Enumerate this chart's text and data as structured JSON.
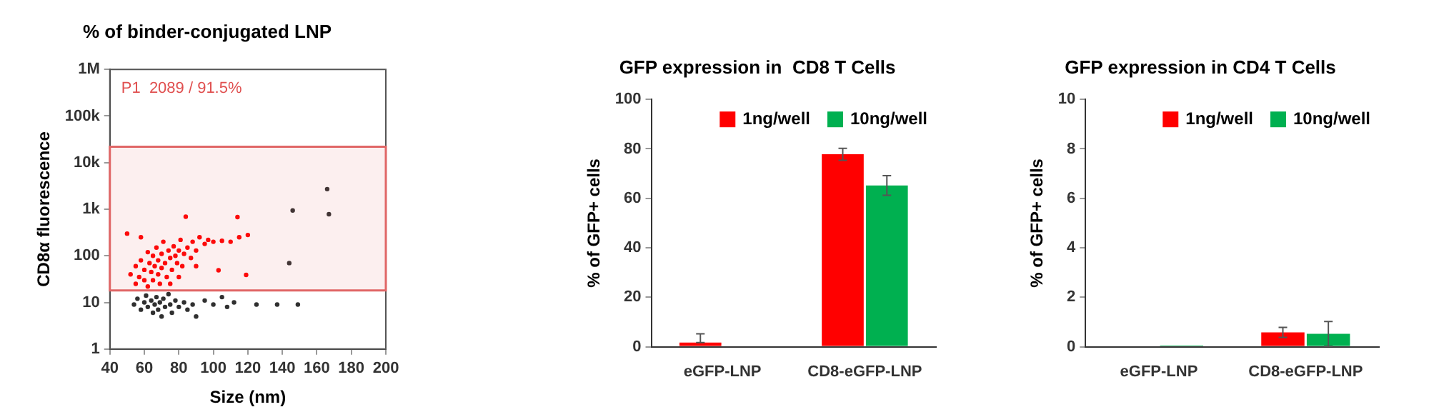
{
  "chart_data": [
    {
      "type": "scatter",
      "title": "% of binder-conjugated LNP",
      "xlabel": "Size (nm)",
      "ylabel": "CD8α fluorescence",
      "log": "y",
      "grid": false,
      "legend": false,
      "marker": "circle",
      "xlim": [
        40,
        200
      ],
      "xticks": [
        40,
        60,
        80,
        100,
        120,
        140,
        160,
        180,
        200
      ],
      "ylim": [
        1,
        1000000
      ],
      "yticks": [
        1,
        10,
        100,
        {
          "value": 1000,
          "label": "1k"
        },
        {
          "value": 10000,
          "label": "10k"
        },
        {
          "value": 100000,
          "label": "100k"
        },
        {
          "value": 1000000,
          "label": "1M"
        }
      ],
      "bands": [
        {
          "axis": "y",
          "from": 18,
          "to": 22000,
          "color": "#e06666"
        }
      ],
      "annotations": [
        "P1  2089 / 91.5%"
      ],
      "series": [
        {
          "color": "#ff0000",
          "x": [
            52,
            55,
            55,
            57,
            58,
            60,
            60,
            62,
            62,
            63,
            64,
            65,
            65,
            66,
            67,
            68,
            68,
            69,
            70,
            70,
            71,
            72,
            73,
            74,
            75,
            76,
            77,
            78,
            79,
            80,
            81,
            82,
            83,
            85,
            87,
            88,
            90,
            92,
            95,
            97,
            100,
            105,
            110,
            115,
            120,
            50,
            58,
            84,
            114,
            80,
            103,
            119,
            90,
            75
          ],
          "values": [
            40,
            25,
            60,
            35,
            80,
            30,
            50,
            120,
            22,
            70,
            45,
            100,
            30,
            60,
            150,
            40,
            80,
            25,
            110,
            55,
            200,
            70,
            35,
            130,
            90,
            50,
            160,
            100,
            70,
            130,
            220,
            60,
            110,
            150,
            90,
            200,
            130,
            250,
            180,
            220,
            200,
            210,
            200,
            250,
            280,
            300,
            250,
            690,
            680,
            35,
            49,
            39,
            60,
            25
          ]
        },
        {
          "color": "#303030",
          "x": [
            54,
            56,
            58,
            60,
            61,
            62,
            64,
            65,
            66,
            67,
            68,
            69,
            70,
            71,
            72,
            74,
            75,
            76,
            78,
            80,
            83,
            85,
            88,
            90,
            95,
            100,
            105,
            108,
            112,
            125,
            137,
            149,
            144,
            146,
            166,
            167
          ],
          "values": [
            9,
            12,
            7,
            10,
            14,
            8,
            11,
            6,
            9,
            13,
            7,
            10,
            5,
            12,
            8,
            15,
            9,
            6,
            11,
            8,
            10,
            7,
            9,
            5,
            11,
            9,
            13,
            8,
            10,
            9,
            9,
            9,
            70,
            940,
            2700,
            780
          ]
        }
      ]
    },
    {
      "type": "bar",
      "title": "GFP expression in  CD8 T Cells",
      "ylabel": "% of GFP+ cells",
      "grid": false,
      "legend": "top right",
      "categories": [
        "eGFP-LNP",
        "CD8-eGFP-LNP"
      ],
      "ylim": [
        0,
        100
      ],
      "yticks": [
        0,
        20,
        40,
        60,
        80,
        100
      ],
      "series": [
        {
          "name": "1ng/well",
          "color": "#ff0000",
          "values": [
            1.7,
            77.8
          ],
          "errors": [
            [
              1.7,
              5.2
            ],
            2.4
          ]
        },
        {
          "name": "10ng/well",
          "color": "#00b050",
          "values": [
            0.3,
            65.2
          ],
          "errors": [
            null,
            4
          ]
        }
      ]
    },
    {
      "type": "bar",
      "title": "GFP expression in CD4 T Cells",
      "ylabel": "% of GFP+ cells",
      "grid": false,
      "legend": "top right",
      "categories": [
        "eGFP-LNP",
        "CD8-eGFP-LNP"
      ],
      "ylim": [
        0,
        10
      ],
      "yticks": [
        0,
        2,
        4,
        6,
        8,
        10
      ],
      "series": [
        {
          "name": "1ng/well",
          "color": "#ff0000",
          "values": [
            null,
            0.58
          ],
          "errors": [
            null,
            0.2
          ]
        },
        {
          "name": "10ng/well",
          "color": "#00b050",
          "values": [
            0.05,
            0.52
          ],
          "errors": [
            null,
            0.5
          ]
        }
      ]
    }
  ]
}
